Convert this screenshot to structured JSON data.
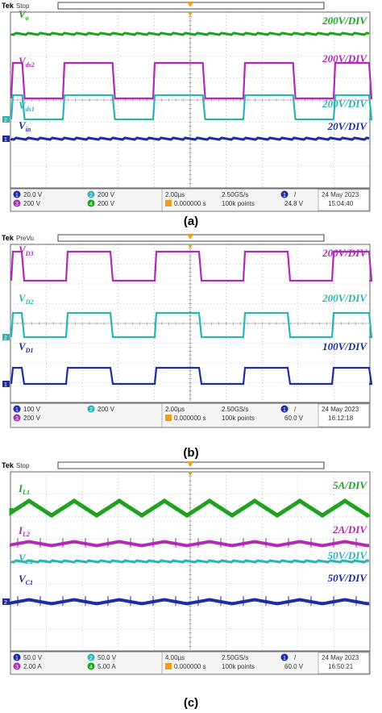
{
  "panels": [
    {
      "caption": "(a)",
      "status": "Stop",
      "tek": "Tek",
      "traces": [
        {
          "label": "Vo",
          "scale": "200V/DIV",
          "color": "#1fa31f",
          "marker": "",
          "type": "flat"
        },
        {
          "label": "Vds2",
          "scale": "200V/DIV",
          "color": "#b12ab5",
          "marker": "",
          "type": "square"
        },
        {
          "label": "Vds1",
          "scale": "200V/DIV",
          "color": "#2ab4b4",
          "marker": "2",
          "type": "square"
        },
        {
          "label": "Vin",
          "scale": "20V/DIV",
          "color": "#1c2ba6",
          "marker": "1",
          "type": "flat"
        }
      ],
      "readout": {
        "ch1": "20.0 V",
        "ch2": "200 V",
        "ch3": "200 V",
        "ch4": "200 V",
        "timebase": "2.00µs",
        "delay": "0.000000 s",
        "rate": "2.50GS/s",
        "points": "100k points",
        "trig_ch": "1",
        "trig_symbol": "/",
        "trig_level": "24.8 V",
        "date": "24 May 2023",
        "time": "15:04:40"
      }
    },
    {
      "caption": "(b)",
      "status": "PreVu",
      "tek": "Tek",
      "traces": [
        {
          "label": "VD3",
          "scale": "200V/DIV",
          "color": "#b12ab5",
          "marker": "",
          "type": "square"
        },
        {
          "label": "VD2",
          "scale": "200V/DIV",
          "color": "#2ab4b4",
          "marker": "2",
          "type": "square"
        },
        {
          "label": "VD1",
          "scale": "100V/DIV",
          "color": "#1c2ba6",
          "marker": "1",
          "type": "square"
        }
      ],
      "readout": {
        "ch1": "100 V",
        "ch2": "200 V",
        "ch3": "200 V",
        "ch4": "",
        "timebase": "2.00µs",
        "delay": "0.000000 s",
        "rate": "2.50GS/s",
        "points": "100k points",
        "trig_ch": "1",
        "trig_symbol": "/",
        "trig_level": "60.0 V",
        "date": "24 May 2023",
        "time": "16:12:18"
      }
    },
    {
      "caption": "(c)",
      "status": "Stop",
      "tek": "Tek",
      "traces": [
        {
          "label": "IL1",
          "scale": "5A/DIV",
          "color": "#1fa31f",
          "marker": "",
          "type": "triangle"
        },
        {
          "label": "IL2",
          "scale": "2A/DIV",
          "color": "#b12ab5",
          "marker": "",
          "type": "ripple"
        },
        {
          "label": "VC2",
          "scale": "50V/DIV",
          "color": "#2ab4b4",
          "marker": "",
          "type": "flat"
        },
        {
          "label": "VC1",
          "scale": "50V/DIV",
          "color": "#1c2ba6",
          "marker": "2",
          "type": "ripple"
        }
      ],
      "readout": {
        "ch1": "50.0 V",
        "ch2": "50.0 V",
        "ch3": "2.00 A",
        "ch4": "5.00 A",
        "timebase": "4.00µs",
        "delay": "0.000000 s",
        "rate": "2.50GS/s",
        "points": "100k points",
        "trig_ch": "1",
        "trig_symbol": "/",
        "trig_level": "60.0 V",
        "date": "24 May 2023",
        "time": "16:50:21"
      }
    }
  ],
  "chart_data": [
    {
      "type": "line",
      "title": "",
      "series": [
        {
          "name": "Vo",
          "values": "constant"
        },
        {
          "name": "Vds2",
          "values": "square wave"
        },
        {
          "name": "Vds1",
          "values": "square wave"
        },
        {
          "name": "Vin",
          "values": "constant"
        }
      ],
      "grid": true,
      "x_divisions": 10,
      "y_divisions": 8
    },
    {
      "type": "line",
      "title": "",
      "series": [
        {
          "name": "VD3",
          "values": "square wave"
        },
        {
          "name": "VD2",
          "values": "square wave"
        },
        {
          "name": "VD1",
          "values": "square wave"
        }
      ],
      "grid": true,
      "x_divisions": 10,
      "y_divisions": 8
    },
    {
      "type": "line",
      "title": "",
      "series": [
        {
          "name": "IL1",
          "values": "triangle wave"
        },
        {
          "name": "IL2",
          "values": "small ripple"
        },
        {
          "name": "VC2",
          "values": "constant"
        },
        {
          "name": "VC1",
          "values": "small ripple"
        }
      ],
      "grid": true,
      "x_divisions": 10,
      "y_divisions": 8
    }
  ]
}
